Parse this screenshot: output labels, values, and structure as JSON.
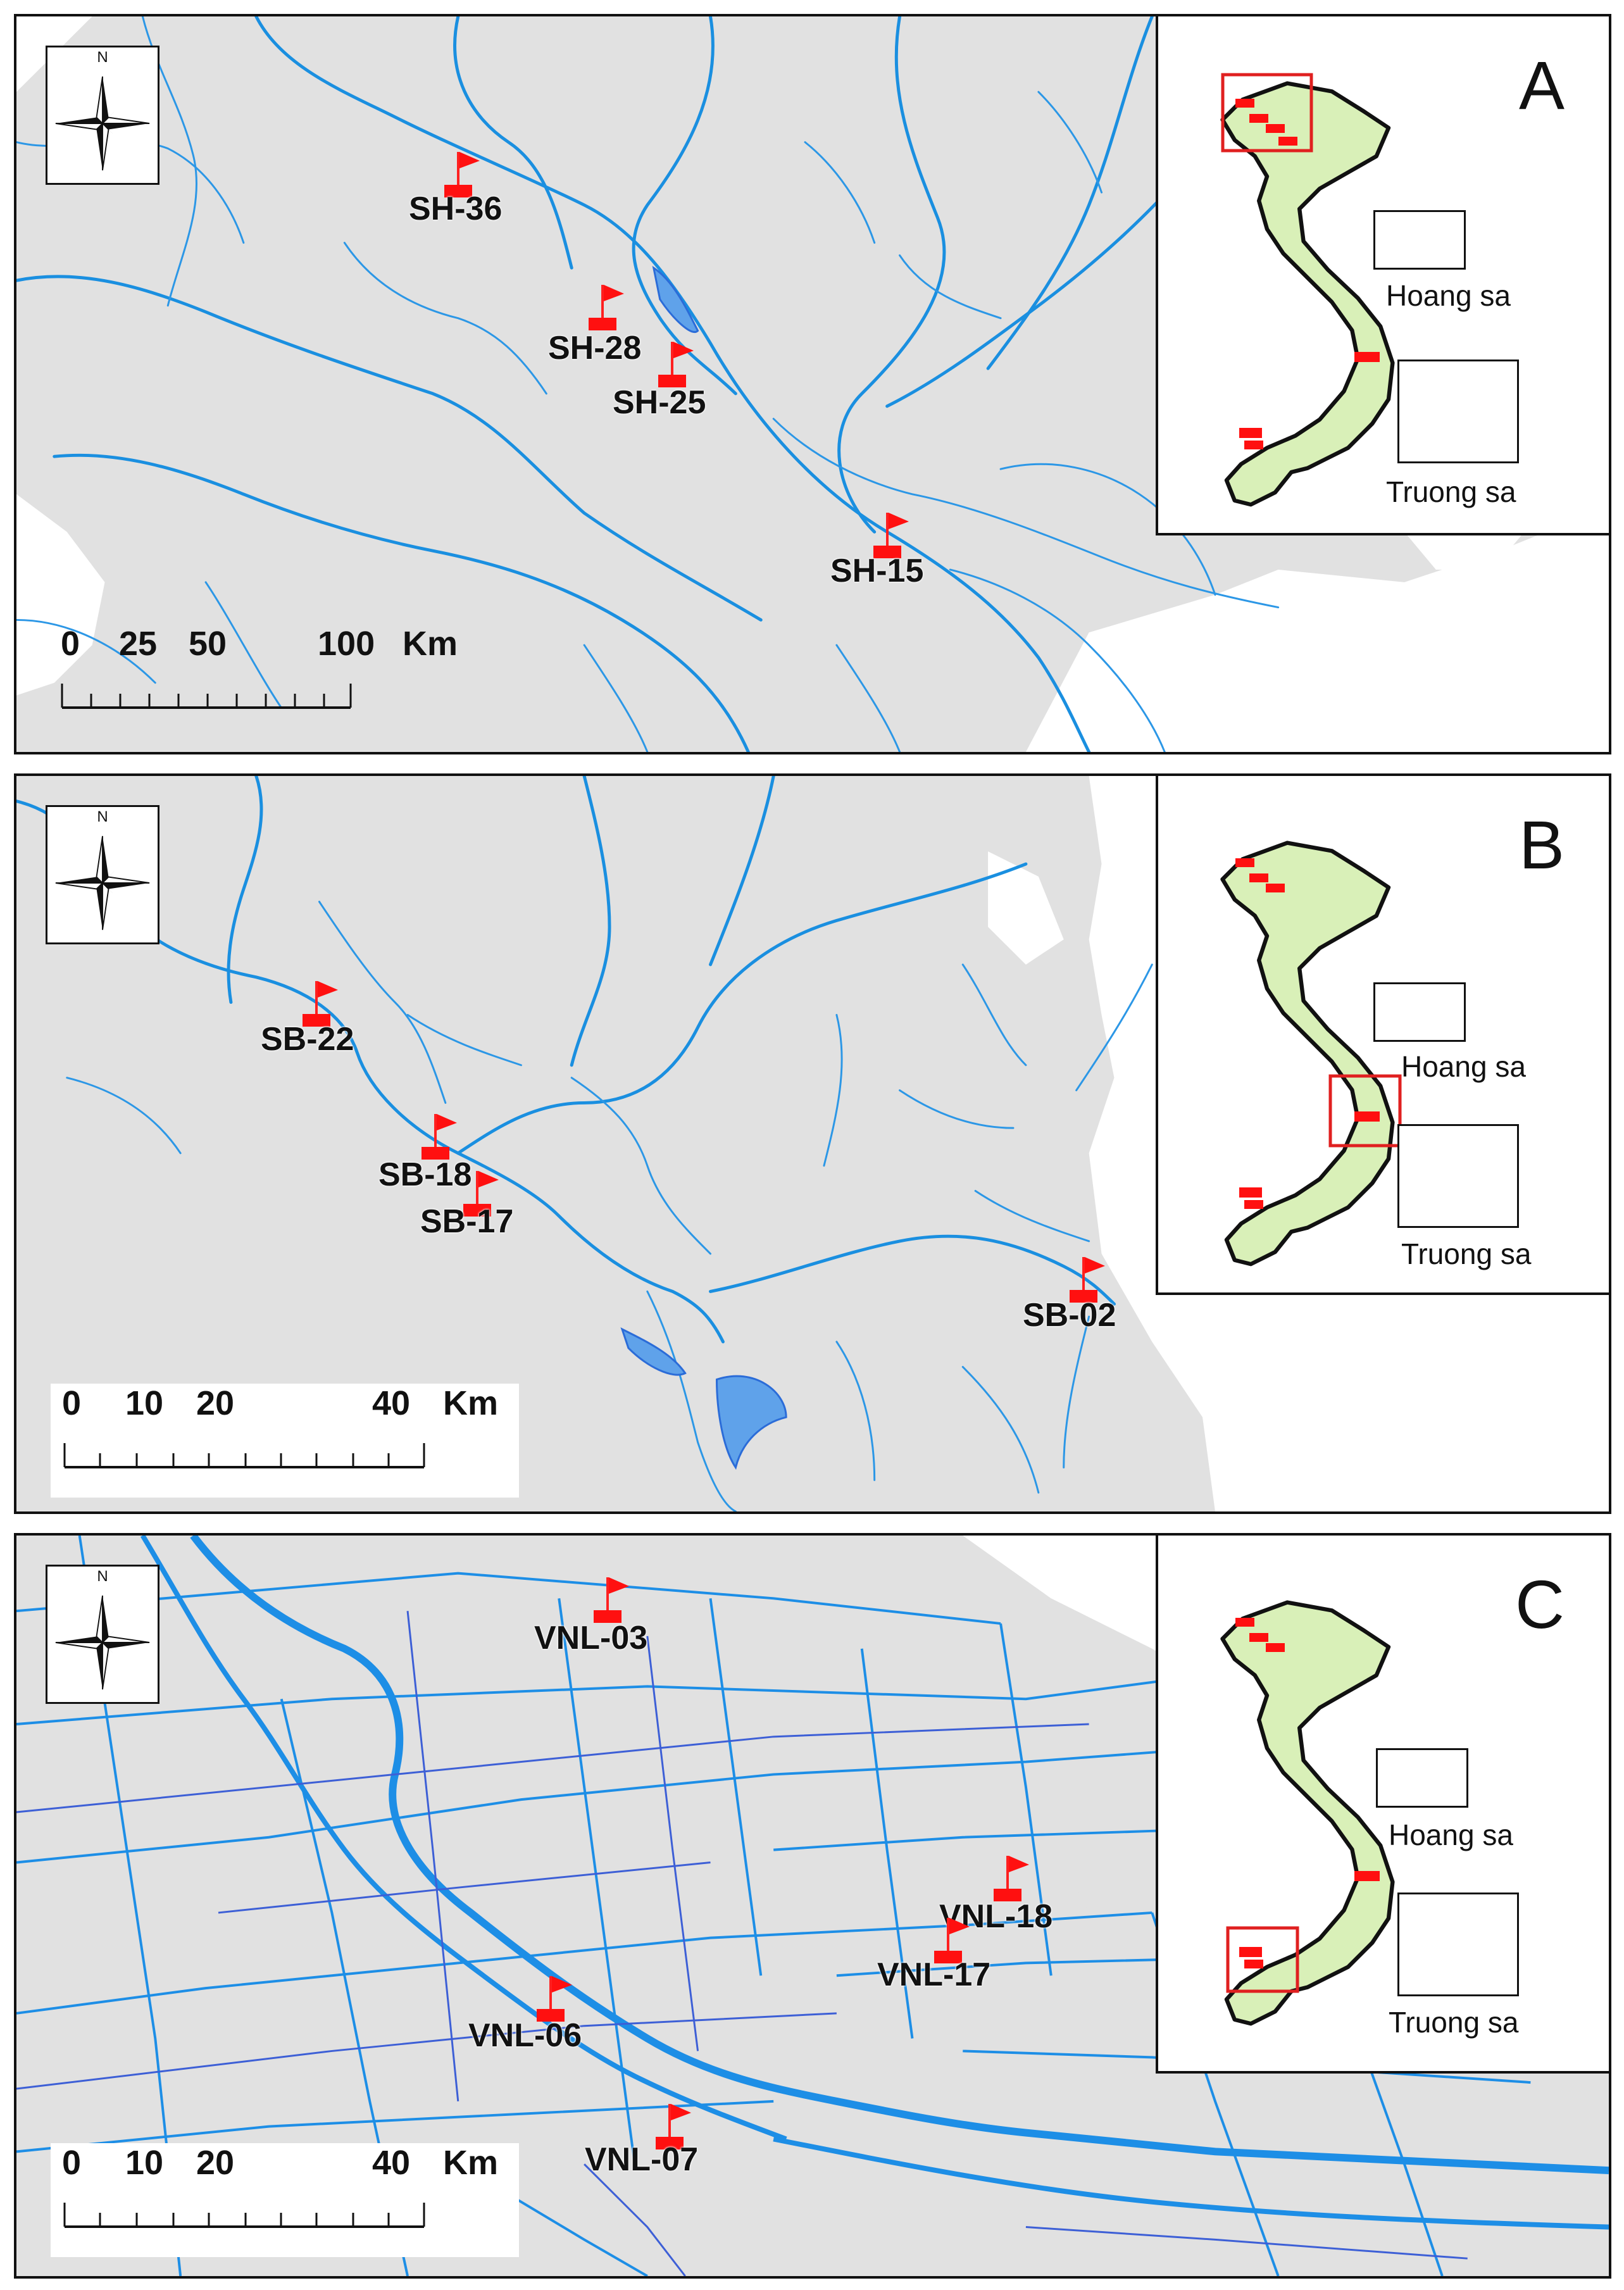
{
  "panels": [
    {
      "letter": "A",
      "north": "N",
      "scale": {
        "unit": "Km",
        "ticks": [
          "0",
          "25",
          "50",
          "100"
        ]
      },
      "sites": [
        {
          "label": "SH-36"
        },
        {
          "label": "SH-28"
        },
        {
          "label": "SH-25"
        },
        {
          "label": "SH-15"
        }
      ],
      "inset": {
        "archipelago_1": "Hoang sa",
        "archipelago_2": "Truong sa",
        "highlight": "north"
      }
    },
    {
      "letter": "B",
      "north": "N",
      "scale": {
        "unit": "Km",
        "ticks": [
          "0",
          "10",
          "20",
          "40"
        ]
      },
      "sites": [
        {
          "label": "SB-22"
        },
        {
          "label": "SB-18"
        },
        {
          "label": "SB-17"
        },
        {
          "label": "SB-02"
        }
      ],
      "inset": {
        "archipelago_1": "Hoang sa",
        "archipelago_2": "Truong sa",
        "highlight": "central"
      }
    },
    {
      "letter": "C",
      "north": "N",
      "scale": {
        "unit": "Km",
        "ticks": [
          "0",
          "10",
          "20",
          "40"
        ]
      },
      "sites": [
        {
          "label": "VNL-03"
        },
        {
          "label": "VNL-18"
        },
        {
          "label": "VNL-17"
        },
        {
          "label": "VNL-06"
        },
        {
          "label": "VNL-07"
        }
      ],
      "inset": {
        "archipelago_1": "Hoang sa",
        "archipelago_2": "Truong sa",
        "highlight": "south"
      }
    }
  ],
  "colors": {
    "land": "#e1e1e1",
    "river": "#1a8fe0",
    "site_flag": "#ff0000",
    "inset_land": "#d9f0b8"
  }
}
